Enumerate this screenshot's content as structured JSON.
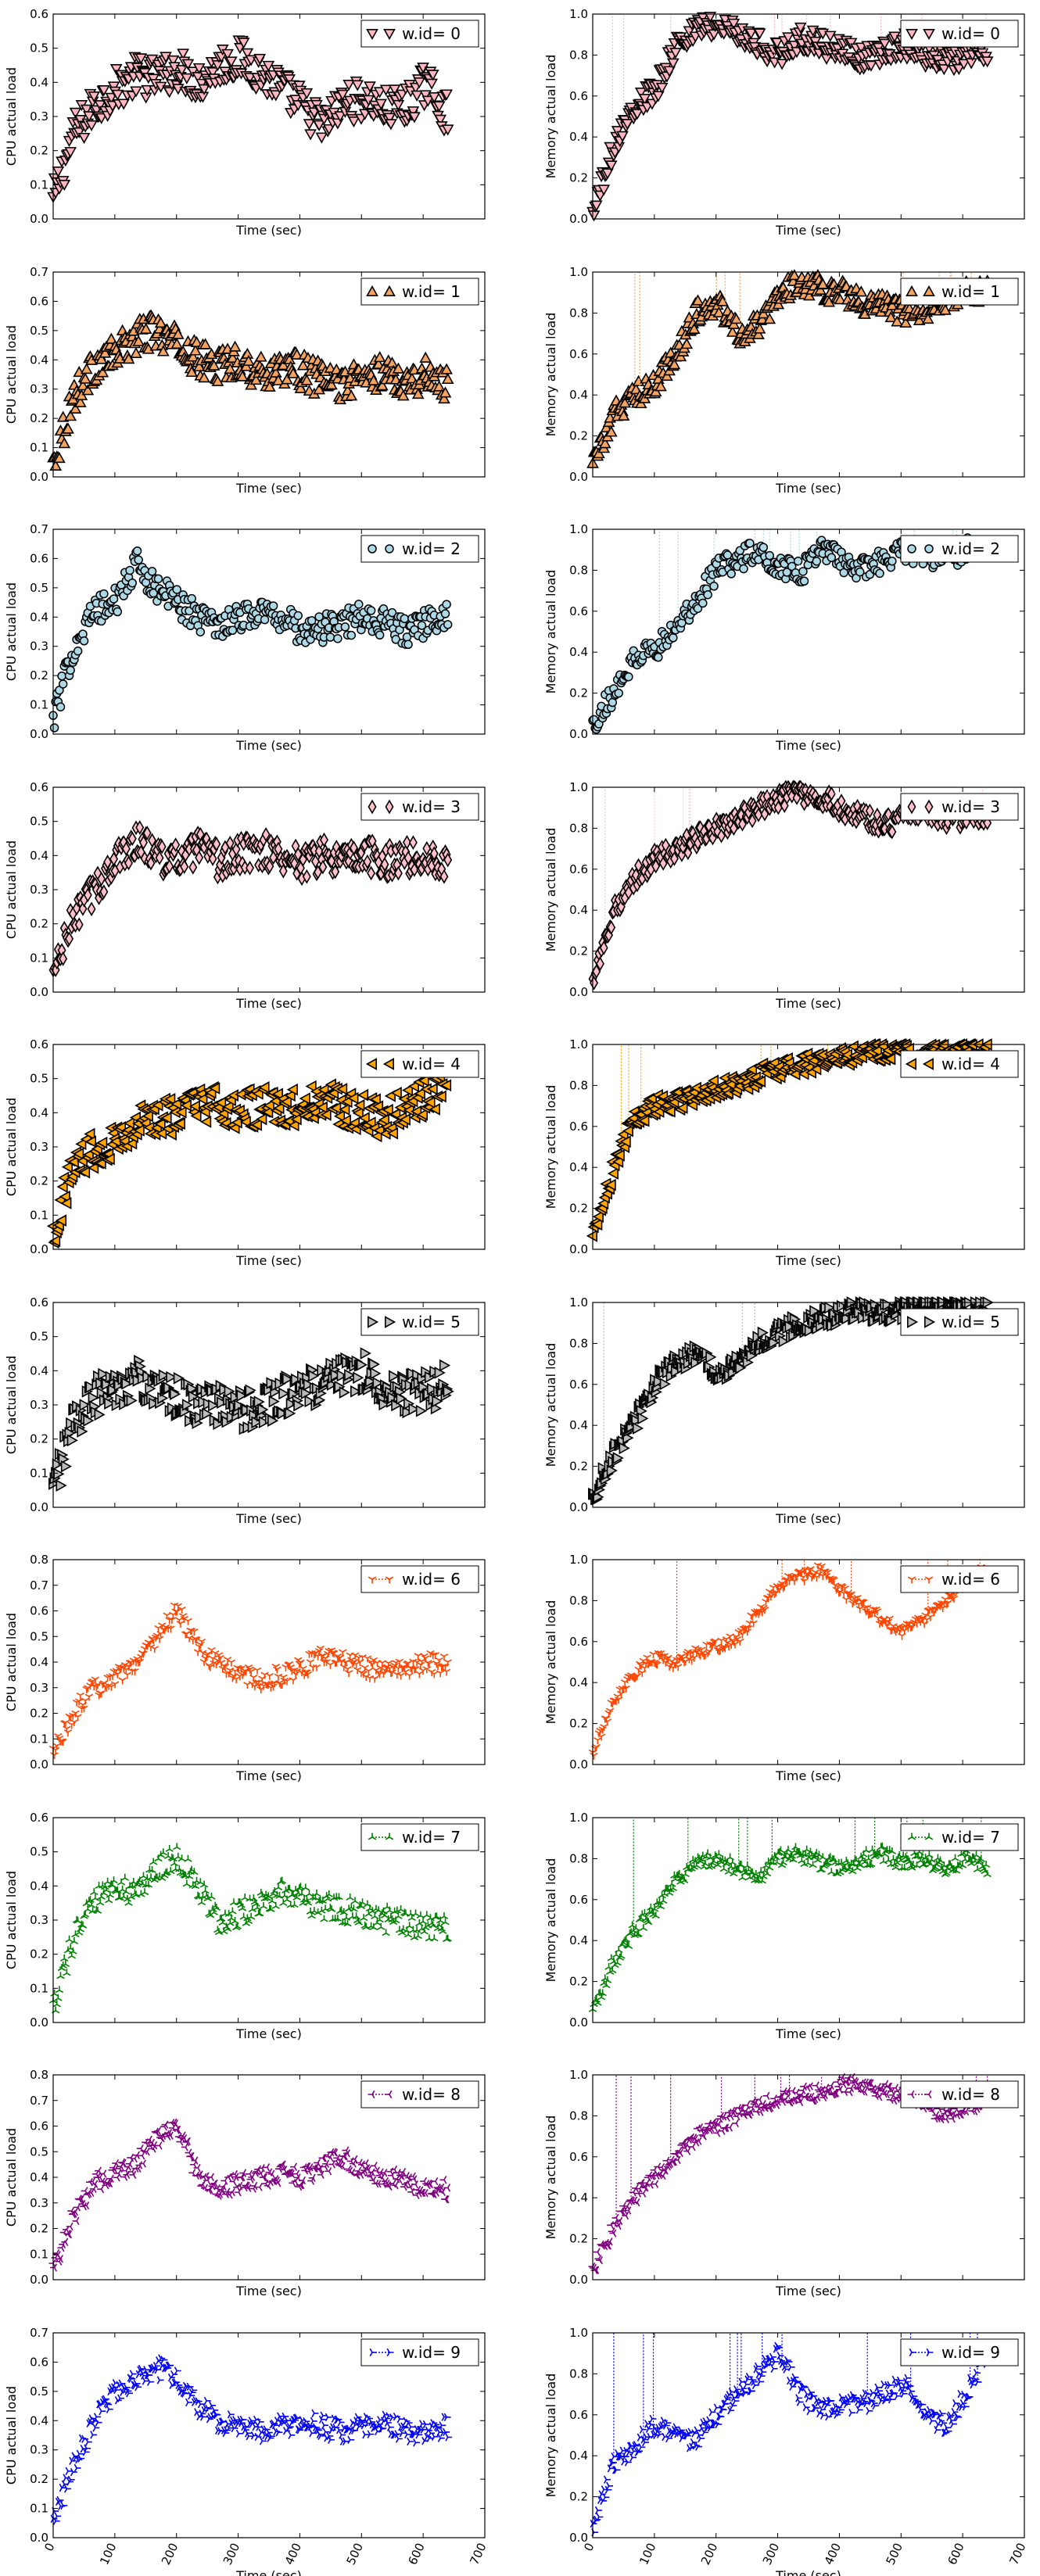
{
  "chart_data": {
    "type": "scatter",
    "xlabel": "Time (sec)",
    "x_ticks": [
      "0",
      "100",
      "200",
      "300",
      "400",
      "500",
      "600",
      "700"
    ],
    "xlim": [
      0,
      700
    ],
    "grid": false,
    "legend_placement": "top-right",
    "panels": [
      {
        "id": 0,
        "legend": "w.id= 0",
        "color": "#ffb6c1",
        "marker": "triangle-down",
        "cpu": {
          "ylabel": "CPU actual load",
          "ylim": [
            0,
            0.6
          ],
          "y_ticks": [
            "0.0",
            "0.1",
            "0.2",
            "0.3",
            "0.4",
            "0.5",
            "0.6"
          ],
          "y": [
            0.05,
            0.25,
            0.33,
            0.38,
            0.42,
            0.41,
            0.44,
            0.4,
            0.45,
            0.47,
            0.43,
            0.38,
            0.33,
            0.27,
            0.34,
            0.35,
            0.32,
            0.33,
            0.4,
            0.3
          ],
          "spread": 0.06
        },
        "memory": {
          "ylabel": "Memory actual load",
          "ylim": [
            0,
            1.0
          ],
          "y_ticks": [
            "0.0",
            "0.2",
            "0.4",
            "0.6",
            "0.8",
            "1.0"
          ],
          "y": [
            0.02,
            0.35,
            0.55,
            0.62,
            0.85,
            0.93,
            0.95,
            0.9,
            0.85,
            0.8,
            0.88,
            0.85,
            0.82,
            0.78,
            0.82,
            0.85,
            0.8,
            0.78,
            0.8,
            0.82
          ],
          "spread": 0.06
        }
      },
      {
        "id": 1,
        "legend": "w.id= 1",
        "color": "#f4a460",
        "marker": "triangle-up",
        "cpu": {
          "ylabel": "CPU actual load",
          "ylim": [
            0,
            0.7
          ],
          "y_ticks": [
            "0.0",
            "0.1",
            "0.2",
            "0.3",
            "0.4",
            "0.5",
            "0.6",
            "0.7"
          ],
          "y": [
            0.05,
            0.28,
            0.38,
            0.42,
            0.48,
            0.5,
            0.45,
            0.4,
            0.38,
            0.4,
            0.35,
            0.38,
            0.36,
            0.33,
            0.32,
            0.34,
            0.36,
            0.33,
            0.35,
            0.32
          ],
          "spread": 0.06
        },
        "memory": {
          "ylabel": "Memory actual load",
          "ylim": [
            0,
            1.0
          ],
          "y_ticks": [
            "0.0",
            "0.2",
            "0.4",
            "0.6",
            "0.8",
            "1.0"
          ],
          "y": [
            0.05,
            0.3,
            0.4,
            0.45,
            0.6,
            0.8,
            0.85,
            0.7,
            0.75,
            0.9,
            0.95,
            0.92,
            0.9,
            0.85,
            0.85,
            0.8,
            0.82,
            0.85,
            0.9,
            0.92
          ],
          "spread": 0.06
        }
      },
      {
        "id": 2,
        "legend": "w.id= 2",
        "color": "#add8e6",
        "marker": "circle",
        "cpu": {
          "ylabel": "CPU actual load",
          "ylim": [
            0,
            0.7
          ],
          "y_ticks": [
            "0.0",
            "0.1",
            "0.2",
            "0.3",
            "0.4",
            "0.5",
            "0.6",
            "0.7"
          ],
          "y": [
            0.05,
            0.3,
            0.42,
            0.45,
            0.58,
            0.5,
            0.45,
            0.4,
            0.38,
            0.4,
            0.42,
            0.4,
            0.35,
            0.36,
            0.38,
            0.4,
            0.38,
            0.35,
            0.38,
            0.42
          ],
          "spread": 0.05
        },
        "memory": {
          "ylabel": "Memory actual load",
          "ylim": [
            0,
            1.0
          ],
          "y_ticks": [
            "0.0",
            "0.2",
            "0.4",
            "0.6",
            "0.8",
            "1.0"
          ],
          "y": [
            0.05,
            0.2,
            0.38,
            0.42,
            0.5,
            0.65,
            0.8,
            0.85,
            0.9,
            0.82,
            0.78,
            0.9,
            0.85,
            0.8,
            0.85,
            0.9,
            0.88,
            0.85,
            0.9,
            0.92
          ],
          "spread": 0.06
        }
      },
      {
        "id": 3,
        "legend": "w.id= 3",
        "color": "#ffc0cb",
        "marker": "diamond",
        "cpu": {
          "ylabel": "CPU actual load",
          "ylim": [
            0,
            0.6
          ],
          "y_ticks": [
            "0.0",
            "0.1",
            "0.2",
            "0.3",
            "0.4",
            "0.5",
            "0.6"
          ],
          "y": [
            0.05,
            0.22,
            0.3,
            0.38,
            0.45,
            0.4,
            0.38,
            0.42,
            0.38,
            0.4,
            0.42,
            0.4,
            0.38,
            0.4,
            0.38,
            0.4,
            0.38,
            0.4,
            0.38,
            0.39
          ],
          "spread": 0.05
        },
        "memory": {
          "ylabel": "Memory actual load",
          "ylim": [
            0,
            1.0
          ],
          "y_ticks": [
            "0.0",
            "0.2",
            "0.4",
            "0.6",
            "0.8",
            "1.0"
          ],
          "y": [
            0.05,
            0.4,
            0.55,
            0.65,
            0.7,
            0.75,
            0.8,
            0.85,
            0.9,
            0.95,
            0.97,
            0.95,
            0.9,
            0.85,
            0.82,
            0.85,
            0.88,
            0.85,
            0.85,
            0.85
          ],
          "spread": 0.05
        }
      },
      {
        "id": 4,
        "legend": "w.id= 4",
        "color": "#ffa500",
        "marker": "triangle-left",
        "cpu": {
          "ylabel": "CPU actual load",
          "ylim": [
            0,
            0.6
          ],
          "y_ticks": [
            "0.0",
            "0.1",
            "0.2",
            "0.3",
            "0.4",
            "0.5",
            "0.6"
          ],
          "y": [
            0.05,
            0.25,
            0.3,
            0.32,
            0.36,
            0.38,
            0.4,
            0.42,
            0.42,
            0.4,
            0.42,
            0.4,
            0.42,
            0.44,
            0.42,
            0.4,
            0.38,
            0.42,
            0.45,
            0.48
          ],
          "spread": 0.06
        },
        "memory": {
          "ylabel": "Memory actual load",
          "ylim": [
            0,
            1.0
          ],
          "y_ticks": [
            "0.0",
            "0.2",
            "0.4",
            "0.6",
            "0.8",
            "1.0"
          ],
          "y": [
            0.05,
            0.4,
            0.65,
            0.7,
            0.72,
            0.75,
            0.78,
            0.8,
            0.85,
            0.88,
            0.9,
            0.92,
            0.95,
            0.95,
            0.97,
            0.98,
            0.95,
            0.95,
            0.97,
            0.97
          ],
          "spread": 0.05
        }
      },
      {
        "id": 5,
        "legend": "w.id= 5",
        "color": "#bbbbbb",
        "marker": "triangle-right",
        "cpu": {
          "ylabel": "CPU actual load",
          "ylim": [
            0,
            0.6
          ],
          "y_ticks": [
            "0.0",
            "0.1",
            "0.2",
            "0.3",
            "0.4",
            "0.5",
            "0.6"
          ],
          "y": [
            0.05,
            0.25,
            0.32,
            0.35,
            0.38,
            0.33,
            0.32,
            0.3,
            0.3,
            0.28,
            0.3,
            0.32,
            0.34,
            0.36,
            0.38,
            0.4,
            0.35,
            0.33,
            0.34,
            0.36
          ],
          "spread": 0.06
        },
        "memory": {
          "ylabel": "Memory actual load",
          "ylim": [
            0,
            1.0
          ],
          "y_ticks": [
            "0.0",
            "0.2",
            "0.4",
            "0.6",
            "0.8",
            "1.0"
          ],
          "y": [
            0.05,
            0.25,
            0.4,
            0.6,
            0.7,
            0.75,
            0.65,
            0.7,
            0.8,
            0.85,
            0.9,
            0.92,
            0.95,
            0.97,
            0.95,
            0.97,
            0.98,
            0.97,
            0.98,
            0.98
          ],
          "spread": 0.05
        }
      },
      {
        "id": 6,
        "legend": "w.id= 6",
        "color": "#ff4500",
        "marker": "tri-down",
        "cpu": {
          "ylabel": "CPU actual load",
          "ylim": [
            0,
            0.8
          ],
          "y_ticks": [
            "0.0",
            "0.1",
            "0.2",
            "0.3",
            "0.4",
            "0.5",
            "0.6",
            "0.7",
            "0.8"
          ],
          "y": [
            0.05,
            0.2,
            0.3,
            0.35,
            0.4,
            0.5,
            0.6,
            0.45,
            0.4,
            0.35,
            0.33,
            0.35,
            0.38,
            0.42,
            0.4,
            0.38,
            0.36,
            0.38,
            0.4,
            0.38
          ],
          "spread": 0.04
        },
        "memory": {
          "ylabel": "Memory actual load",
          "ylim": [
            0,
            1.0
          ],
          "y_ticks": [
            "0.0",
            "0.2",
            "0.4",
            "0.6",
            "0.8",
            "1.0"
          ],
          "y": [
            0.05,
            0.3,
            0.45,
            0.52,
            0.5,
            0.55,
            0.58,
            0.62,
            0.75,
            0.88,
            0.92,
            0.95,
            0.85,
            0.78,
            0.7,
            0.65,
            0.72,
            0.8,
            0.9,
            0.95
          ],
          "spread": 0.03
        }
      },
      {
        "id": 7,
        "legend": "w.id= 7",
        "color": "#008000",
        "marker": "tri-up",
        "cpu": {
          "ylabel": "CPU actual load",
          "ylim": [
            0,
            0.6
          ],
          "y_ticks": [
            "0.0",
            "0.1",
            "0.2",
            "0.3",
            "0.4",
            "0.5",
            "0.6"
          ],
          "y": [
            0.05,
            0.25,
            0.35,
            0.4,
            0.38,
            0.45,
            0.48,
            0.4,
            0.3,
            0.32,
            0.35,
            0.38,
            0.36,
            0.34,
            0.33,
            0.32,
            0.3,
            0.29,
            0.28,
            0.27
          ],
          "spread": 0.04
        },
        "memory": {
          "ylabel": "Memory actual load",
          "ylim": [
            0,
            1.0
          ],
          "y_ticks": [
            "0.0",
            "0.2",
            "0.4",
            "0.6",
            "0.8",
            "1.0"
          ],
          "y": [
            0.05,
            0.3,
            0.45,
            0.55,
            0.7,
            0.78,
            0.8,
            0.75,
            0.7,
            0.8,
            0.82,
            0.78,
            0.75,
            0.8,
            0.82,
            0.78,
            0.8,
            0.75,
            0.8,
            0.75
          ],
          "spread": 0.04
        }
      },
      {
        "id": 8,
        "legend": "w.id= 8",
        "color": "#800080",
        "marker": "tri-left",
        "cpu": {
          "ylabel": "CPU actual load",
          "ylim": [
            0,
            0.8
          ],
          "y_ticks": [
            "0.0",
            "0.1",
            "0.2",
            "0.3",
            "0.4",
            "0.5",
            "0.6",
            "0.7",
            "0.8"
          ],
          "y": [
            0.05,
            0.25,
            0.38,
            0.42,
            0.45,
            0.55,
            0.6,
            0.4,
            0.35,
            0.38,
            0.4,
            0.42,
            0.4,
            0.45,
            0.48,
            0.42,
            0.4,
            0.38,
            0.36,
            0.35
          ],
          "spread": 0.04
        },
        "memory": {
          "ylabel": "Memory actual load",
          "ylim": [
            0,
            1.0
          ],
          "y_ticks": [
            "0.0",
            "0.2",
            "0.4",
            "0.6",
            "0.8",
            "1.0"
          ],
          "y": [
            0.05,
            0.25,
            0.4,
            0.5,
            0.6,
            0.7,
            0.75,
            0.8,
            0.85,
            0.88,
            0.9,
            0.92,
            0.95,
            0.95,
            0.92,
            0.9,
            0.85,
            0.8,
            0.85,
            0.88
          ],
          "spread": 0.04
        }
      },
      {
        "id": 9,
        "legend": "w.id= 9",
        "color": "#0000ff",
        "marker": "tri-right",
        "cpu": {
          "ylabel": "CPU actual load",
          "ylim": [
            0,
            0.7
          ],
          "y_ticks": [
            "0.0",
            "0.1",
            "0.2",
            "0.3",
            "0.4",
            "0.5",
            "0.6",
            "0.7"
          ],
          "y": [
            0.05,
            0.25,
            0.4,
            0.5,
            0.55,
            0.58,
            0.55,
            0.45,
            0.4,
            0.38,
            0.36,
            0.38,
            0.4,
            0.38,
            0.36,
            0.38,
            0.4,
            0.36,
            0.35,
            0.38
          ],
          "spread": 0.04
        },
        "memory": {
          "ylabel": "Memory actual load",
          "ylim": [
            0,
            1.0
          ],
          "y_ticks": [
            "0.0",
            "0.2",
            "0.4",
            "0.6",
            "0.8",
            "1.0"
          ],
          "y": [
            0.05,
            0.35,
            0.45,
            0.55,
            0.5,
            0.48,
            0.6,
            0.7,
            0.8,
            0.9,
            0.7,
            0.62,
            0.65,
            0.65,
            0.7,
            0.75,
            0.6,
            0.55,
            0.7,
            0.9
          ],
          "spread": 0.05
        }
      }
    ]
  }
}
